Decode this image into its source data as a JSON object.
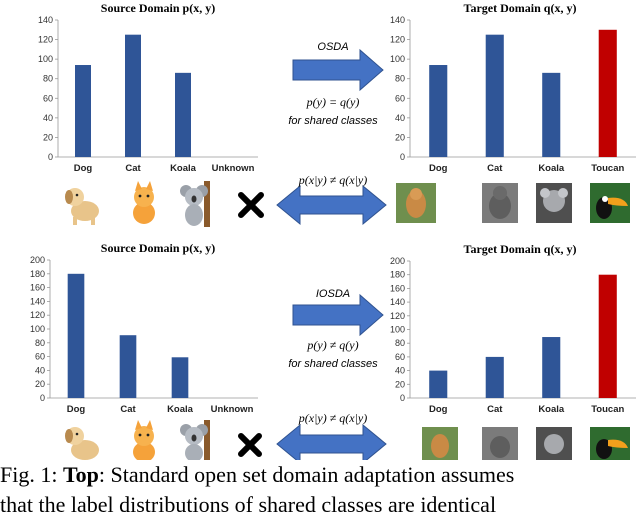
{
  "panels": {
    "top": {
      "arrow_label": "OSDA",
      "label_shift_eq": "p(y) = q(y)",
      "label_shift_note": "for shared classes",
      "cond_eq": "p(x|y) ≠ q(x|y)"
    },
    "bottom": {
      "arrow_label": "IOSDA",
      "label_shift_eq": "p(y) ≠ q(y)",
      "label_shift_note": "for shared classes",
      "cond_eq": "p(x|y) ≠ q(x|y)"
    }
  },
  "chart_data": [
    {
      "type": "bar",
      "title": "Source Domain p(x, y)",
      "categories": [
        "Dog",
        "Cat",
        "Koala",
        "Unknown"
      ],
      "values": [
        94,
        125,
        86,
        0
      ],
      "ylim": [
        0,
        140
      ],
      "yticks": [
        0,
        20,
        40,
        60,
        80,
        100,
        120,
        140
      ],
      "colors": [
        "#2f5597",
        "#2f5597",
        "#2f5597",
        "#2f5597"
      ]
    },
    {
      "type": "bar",
      "title": "Target Domain q(x, y)",
      "categories": [
        "Dog",
        "Cat",
        "Koala",
        "Toucan"
      ],
      "values": [
        94,
        125,
        86,
        130
      ],
      "ylim": [
        0,
        140
      ],
      "yticks": [
        0,
        20,
        40,
        60,
        80,
        100,
        120,
        140
      ],
      "colors": [
        "#2f5597",
        "#2f5597",
        "#2f5597",
        "#c00000"
      ]
    },
    {
      "type": "bar",
      "title": "Source Domain p(x, y)",
      "categories": [
        "Dog",
        "Cat",
        "Koala",
        "Unknown"
      ],
      "values": [
        180,
        91,
        59,
        0
      ],
      "ylim": [
        0,
        200
      ],
      "yticks": [
        0,
        20,
        40,
        60,
        80,
        100,
        120,
        140,
        160,
        180,
        200
      ],
      "colors": [
        "#2f5597",
        "#2f5597",
        "#2f5597",
        "#2f5597"
      ]
    },
    {
      "type": "bar",
      "title": "Target Domain q(x, y)",
      "categories": [
        "Dog",
        "Cat",
        "Koala",
        "Toucan"
      ],
      "values": [
        40,
        60,
        89,
        180
      ],
      "ylim": [
        0,
        200
      ],
      "yticks": [
        0,
        20,
        40,
        60,
        80,
        100,
        120,
        140,
        160,
        180,
        200
      ],
      "colors": [
        "#2f5597",
        "#2f5597",
        "#2f5597",
        "#c00000"
      ]
    }
  ],
  "caption": {
    "label": "Fig. 1:",
    "bold": "Top",
    "text": ": Standard open set domain adaptation assumes",
    "line2": "that the label distributions of shared classes are identical"
  }
}
